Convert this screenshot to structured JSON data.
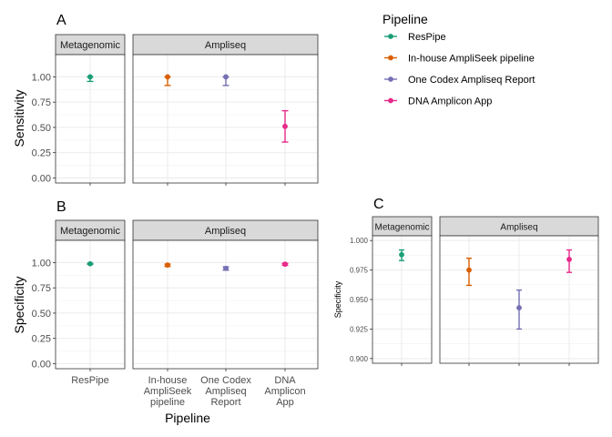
{
  "legend": {
    "title": "Pipeline",
    "items": [
      {
        "label": "ResPipe",
        "color": "#1b9e77"
      },
      {
        "label": "In-house AmpliSeek pipeline",
        "color": "#d95f02"
      },
      {
        "label": "One Codex Ampliseq Report",
        "color": "#7570b3"
      },
      {
        "label": "DNA Amplicon App",
        "color": "#e7298a"
      }
    ]
  },
  "facets": {
    "left": "Metagenomic",
    "right": "Ampliseq"
  },
  "xlabel": "Pipeline",
  "chart_data": [
    {
      "panel": "A",
      "type": "scatter",
      "ylabel": "Sensitivity",
      "ylim": [
        -0.05,
        1.22
      ],
      "yticks": [
        "0.00",
        "0.25",
        "0.50",
        "0.75",
        "1.00"
      ],
      "grid": true,
      "x": [
        "ResPipe",
        "In-house AmpliSeek pipeline",
        "One Codex Ampliseq Report",
        "DNA Amplicon App"
      ],
      "series": [
        {
          "name": "ResPipe",
          "facet": "Metagenomic",
          "y": 1.0,
          "lower": 0.955,
          "upper": 1.0,
          "color": "#1b9e77"
        },
        {
          "name": "In-house AmpliSeek pipeline",
          "facet": "Ampliseq",
          "y": 1.0,
          "lower": 0.915,
          "upper": 1.0,
          "color": "#d95f02"
        },
        {
          "name": "One Codex Ampliseq Report",
          "facet": "Ampliseq",
          "y": 1.0,
          "lower": 0.915,
          "upper": 1.0,
          "color": "#7570b3"
        },
        {
          "name": "DNA Amplicon App",
          "facet": "Ampliseq",
          "y": 0.51,
          "lower": 0.355,
          "upper": 0.665,
          "color": "#e7298a"
        }
      ]
    },
    {
      "panel": "B",
      "type": "scatter",
      "ylabel": "Specificity",
      "ylim": [
        -0.05,
        1.22
      ],
      "yticks": [
        "0.00",
        "0.25",
        "0.50",
        "0.75",
        "1.00"
      ],
      "grid": true,
      "x": [
        "ResPipe",
        "In-house AmpliSeek pipeline",
        "One Codex Ampliseq Report",
        "DNA Amplicon App"
      ],
      "xtick_lines": [
        [
          "ResPipe"
        ],
        [
          "In-house",
          "AmpliSeek",
          "pipeline"
        ],
        [
          "One Codex",
          "Ampliseq",
          "Report"
        ],
        [
          "DNA",
          "Amplicon",
          "App"
        ]
      ],
      "series": [
        {
          "name": "ResPipe",
          "facet": "Metagenomic",
          "y": 0.988,
          "lower": 0.983,
          "upper": 0.992,
          "color": "#1b9e77"
        },
        {
          "name": "In-house AmpliSeek pipeline",
          "facet": "Ampliseq",
          "y": 0.975,
          "lower": 0.962,
          "upper": 0.985,
          "color": "#d95f02"
        },
        {
          "name": "One Codex Ampliseq Report",
          "facet": "Ampliseq",
          "y": 0.943,
          "lower": 0.925,
          "upper": 0.958,
          "color": "#7570b3"
        },
        {
          "name": "DNA Amplicon App",
          "facet": "Ampliseq",
          "y": 0.984,
          "lower": 0.973,
          "upper": 0.992,
          "color": "#e7298a"
        }
      ]
    },
    {
      "panel": "C",
      "type": "scatter",
      "ylabel": "Specificity",
      "ylim": [
        0.896,
        1.004
      ],
      "yticks": [
        "0.900",
        "0.925",
        "0.950",
        "0.975",
        "1.000"
      ],
      "grid": true,
      "x": [
        "ResPipe",
        "In-house AmpliSeek pipeline",
        "One Codex Ampliseq Report",
        "DNA Amplicon App"
      ],
      "series": [
        {
          "name": "ResPipe",
          "facet": "Metagenomic",
          "y": 0.988,
          "lower": 0.983,
          "upper": 0.992,
          "color": "#1b9e77"
        },
        {
          "name": "In-house AmpliSeek pipeline",
          "facet": "Ampliseq",
          "y": 0.975,
          "lower": 0.962,
          "upper": 0.985,
          "color": "#d95f02"
        },
        {
          "name": "One Codex Ampliseq Report",
          "facet": "Ampliseq",
          "y": 0.943,
          "lower": 0.925,
          "upper": 0.958,
          "color": "#7570b3"
        },
        {
          "name": "DNA Amplicon App",
          "facet": "Ampliseq",
          "y": 0.984,
          "lower": 0.973,
          "upper": 0.992,
          "color": "#e7298a"
        }
      ]
    }
  ]
}
